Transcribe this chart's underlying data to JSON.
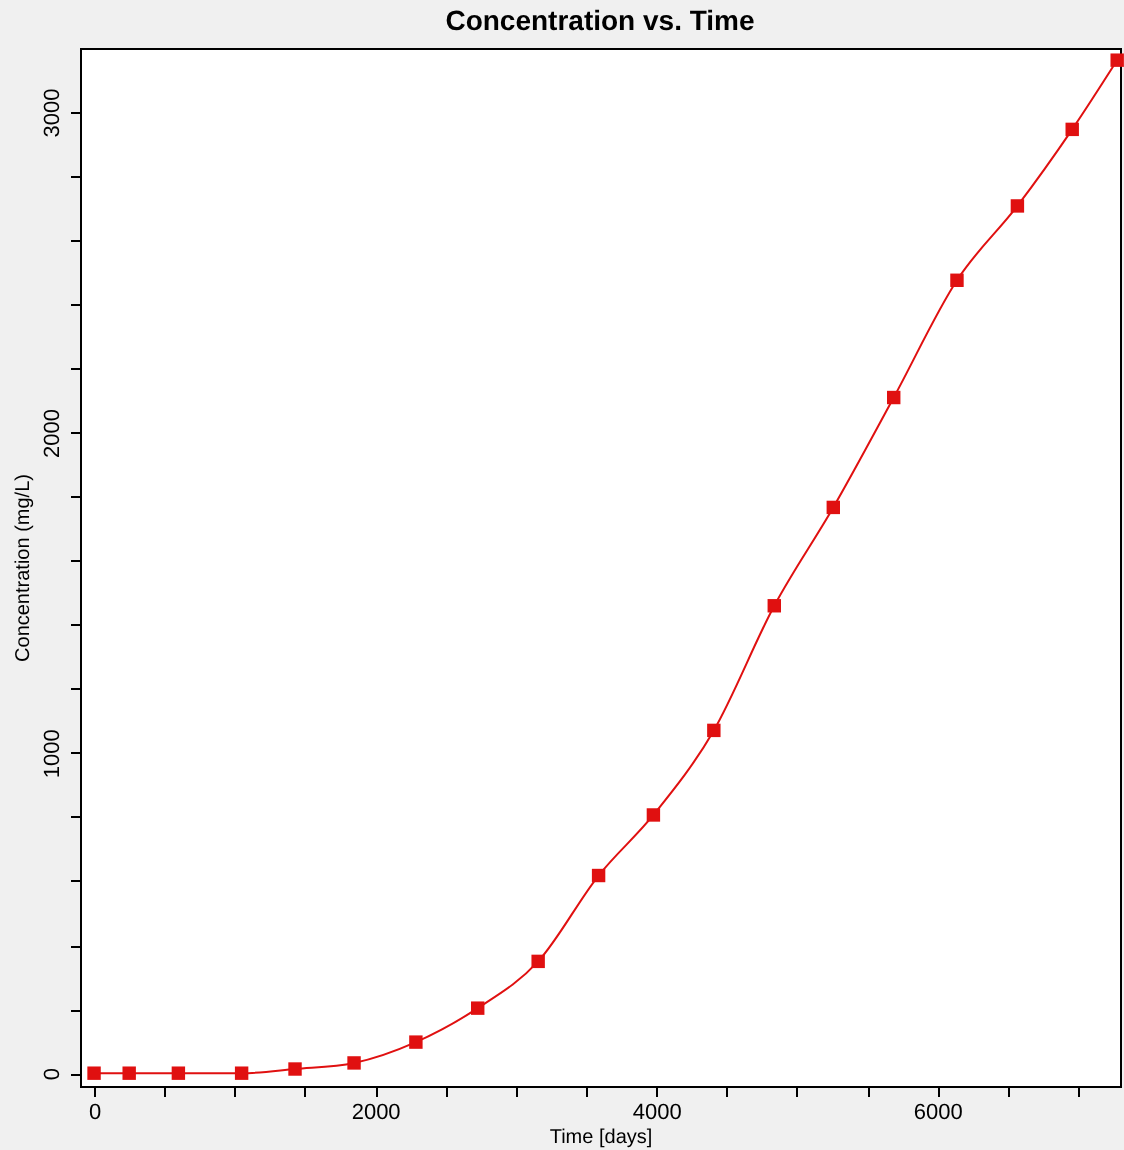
{
  "chart_data": {
    "type": "line",
    "title": "Concentration vs. Time",
    "xlabel": "Time  [days]",
    "ylabel": "Concentration (mg/L)",
    "x": [
      0,
      250,
      600,
      1050,
      1430,
      1850,
      2290,
      2730,
      3160,
      3590,
      3980,
      4410,
      4840,
      5260,
      5690,
      6140,
      6570,
      6960,
      7280
    ],
    "series": [
      {
        "color": "#e01010",
        "values": [
          0,
          0,
          0,
          0,
          13,
          32,
          97,
          203,
          349,
          617,
          806,
          1070,
          1459,
          1766,
          2109,
          2475,
          2707,
          2946,
          3162
        ]
      }
    ],
    "marker": "square",
    "line_style": "solid",
    "grid": false,
    "legend": false,
    "xlim": [
      -100,
      7300
    ],
    "ylim": [
      -40,
      3200
    ],
    "xticks": [
      0,
      {
        "value": 500,
        "label": null
      },
      {
        "value": 1000,
        "label": null
      },
      {
        "value": 1500,
        "label": null
      },
      2000,
      {
        "value": 2500,
        "label": null
      },
      {
        "value": 3000,
        "label": null
      },
      {
        "value": 3500,
        "label": null
      },
      4000,
      {
        "value": 4500,
        "label": null
      },
      {
        "value": 5000,
        "label": null
      },
      {
        "value": 5500,
        "label": null
      },
      6000,
      {
        "value": 6500,
        "label": null
      },
      {
        "value": 7000,
        "label": null
      }
    ],
    "yticks": [
      0,
      {
        "value": 200,
        "label": null
      },
      {
        "value": 400,
        "label": null
      },
      {
        "value": 600,
        "label": null
      },
      {
        "value": 800,
        "label": null
      },
      1000,
      {
        "value": 1200,
        "label": null
      },
      {
        "value": 1400,
        "label": null
      },
      {
        "value": 1600,
        "label": null
      },
      {
        "value": 1800,
        "label": null
      },
      2000,
      {
        "value": 2200,
        "label": null
      },
      {
        "value": 2400,
        "label": null
      },
      {
        "value": 2600,
        "label": null
      },
      {
        "value": 2800,
        "label": null
      },
      3000
    ]
  }
}
